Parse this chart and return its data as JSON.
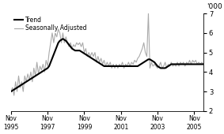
{
  "ylabel_right": "'000",
  "ylim": [
    2,
    7
  ],
  "yticks": [
    2,
    3,
    4,
    5,
    6,
    7
  ],
  "xlabel_ticks": [
    "Nov\n1995",
    "Nov\n1997",
    "Nov\n1999",
    "Nov\n2001",
    "Nov\n2003",
    "Nov\n2005"
  ],
  "xlabel_tick_positions": [
    0,
    24,
    48,
    72,
    96,
    120
  ],
  "trend_color": "#000000",
  "sa_color": "#aaaaaa",
  "trend_linewidth": 1.5,
  "sa_linewidth": 0.8,
  "legend_labels": [
    "Trend",
    "Seasonally Adjusted"
  ],
  "background_color": "#ffffff",
  "trend_data": [
    3.0,
    3.05,
    3.1,
    3.15,
    3.2,
    3.25,
    3.3,
    3.35,
    3.4,
    3.45,
    3.5,
    3.55,
    3.6,
    3.65,
    3.7,
    3.75,
    3.8,
    3.85,
    3.9,
    3.95,
    4.0,
    4.05,
    4.1,
    4.15,
    4.2,
    4.3,
    4.5,
    4.7,
    4.9,
    5.1,
    5.3,
    5.5,
    5.6,
    5.65,
    5.7,
    5.65,
    5.6,
    5.5,
    5.4,
    5.3,
    5.2,
    5.15,
    5.1,
    5.1,
    5.1,
    5.1,
    5.05,
    5.0,
    4.95,
    4.9,
    4.85,
    4.8,
    4.75,
    4.7,
    4.65,
    4.6,
    4.55,
    4.5,
    4.45,
    4.4,
    4.35,
    4.3,
    4.3,
    4.3,
    4.3,
    4.3,
    4.3,
    4.3,
    4.3,
    4.3,
    4.3,
    4.3,
    4.3,
    4.3,
    4.3,
    4.3,
    4.3,
    4.3,
    4.3,
    4.3,
    4.3,
    4.3,
    4.3,
    4.3,
    4.35,
    4.4,
    4.45,
    4.5,
    4.55,
    4.6,
    4.65,
    4.65,
    4.6,
    4.55,
    4.5,
    4.4,
    4.3,
    4.25,
    4.2,
    4.2,
    4.2,
    4.2,
    4.25,
    4.3,
    4.35,
    4.4,
    4.4,
    4.4,
    4.4,
    4.4,
    4.4,
    4.4,
    4.4,
    4.4,
    4.4,
    4.4,
    4.4,
    4.4,
    4.4,
    4.4,
    4.4,
    4.4,
    4.4,
    4.4,
    4.4,
    4.4,
    4.4
  ],
  "sa_data": [
    3.0,
    3.2,
    2.8,
    3.5,
    3.0,
    3.8,
    3.2,
    3.5,
    3.0,
    3.8,
    3.5,
    3.9,
    3.6,
    4.0,
    3.5,
    4.2,
    3.8,
    4.5,
    3.9,
    4.3,
    4.1,
    4.4,
    4.0,
    4.6,
    4.3,
    5.0,
    5.5,
    6.0,
    5.5,
    6.0,
    5.8,
    6.2,
    6.0,
    5.5,
    6.0,
    5.5,
    5.8,
    5.5,
    5.3,
    5.5,
    5.2,
    5.4,
    5.3,
    5.5,
    5.4,
    5.5,
    5.3,
    5.5,
    5.0,
    5.2,
    4.8,
    5.0,
    4.8,
    5.0,
    4.8,
    5.0,
    4.5,
    4.8,
    4.5,
    4.7,
    4.4,
    4.6,
    4.3,
    4.5,
    4.3,
    4.5,
    4.2,
    4.4,
    4.2,
    4.4,
    4.2,
    4.4,
    4.3,
    4.5,
    4.2,
    4.4,
    4.3,
    4.5,
    4.3,
    4.5,
    4.4,
    4.6,
    4.5,
    4.7,
    4.8,
    5.0,
    5.2,
    5.5,
    5.0,
    4.8,
    7.0,
    4.2,
    4.5,
    4.3,
    4.4,
    4.3,
    4.2,
    4.3,
    4.5,
    4.2,
    4.3,
    4.5,
    4.2,
    4.4,
    4.3,
    4.5,
    4.3,
    4.4,
    4.3,
    4.5,
    4.3,
    4.5,
    4.4,
    4.5,
    4.3,
    4.5,
    4.4,
    4.6,
    4.4,
    4.6,
    4.5,
    4.6,
    4.4,
    4.5,
    4.4,
    4.5,
    4.4
  ]
}
